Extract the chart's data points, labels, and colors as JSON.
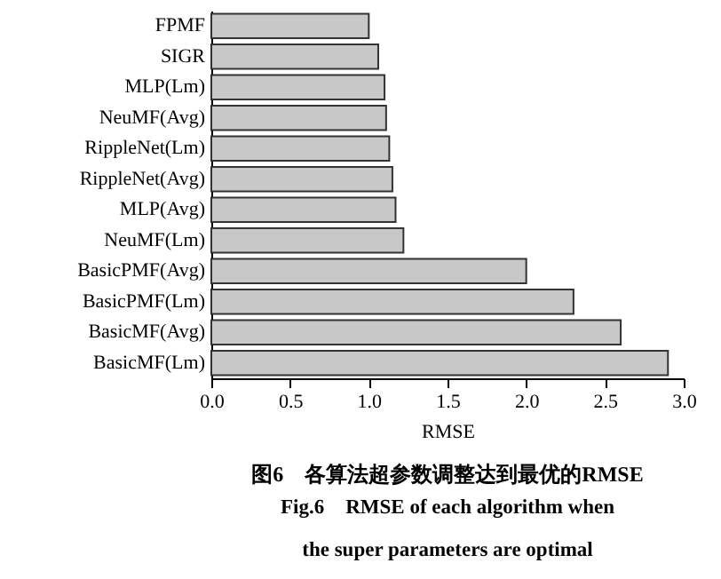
{
  "chart_data": {
    "type": "bar",
    "orientation": "horizontal",
    "title": "图6　各算法超参数调整达到最优的RMSE",
    "subtitle": "Fig.6　RMSE of each algorithm when\nthe super parameters are optimal",
    "xlabel": "RMSE",
    "categories": [
      "FPMF",
      "SIGR",
      "MLP(Lm)",
      "NeuMF(Avg)",
      "RippleNet(Lm)",
      "RippleNet(Avg)",
      "MLP(Avg)",
      "NeuMF(Lm)",
      "BasicPMF(Avg)",
      "BasicPMF(Lm)",
      "BasicMF(Avg)",
      "BasicMF(Lm)"
    ],
    "values": [
      1.0,
      1.06,
      1.1,
      1.11,
      1.13,
      1.15,
      1.17,
      1.22,
      2.0,
      2.3,
      2.6,
      2.9
    ],
    "color": "#c8c8c8",
    "xlim": [
      0,
      3
    ],
    "xticks": [
      {
        "value": 0,
        "label": "0.0"
      },
      0.5,
      {
        "value": 1,
        "label": "1.0"
      },
      1.5,
      {
        "value": 2,
        "label": "2.0"
      },
      2.5,
      {
        "value": 3,
        "label": "3.0"
      }
    ],
    "grid": false
  }
}
